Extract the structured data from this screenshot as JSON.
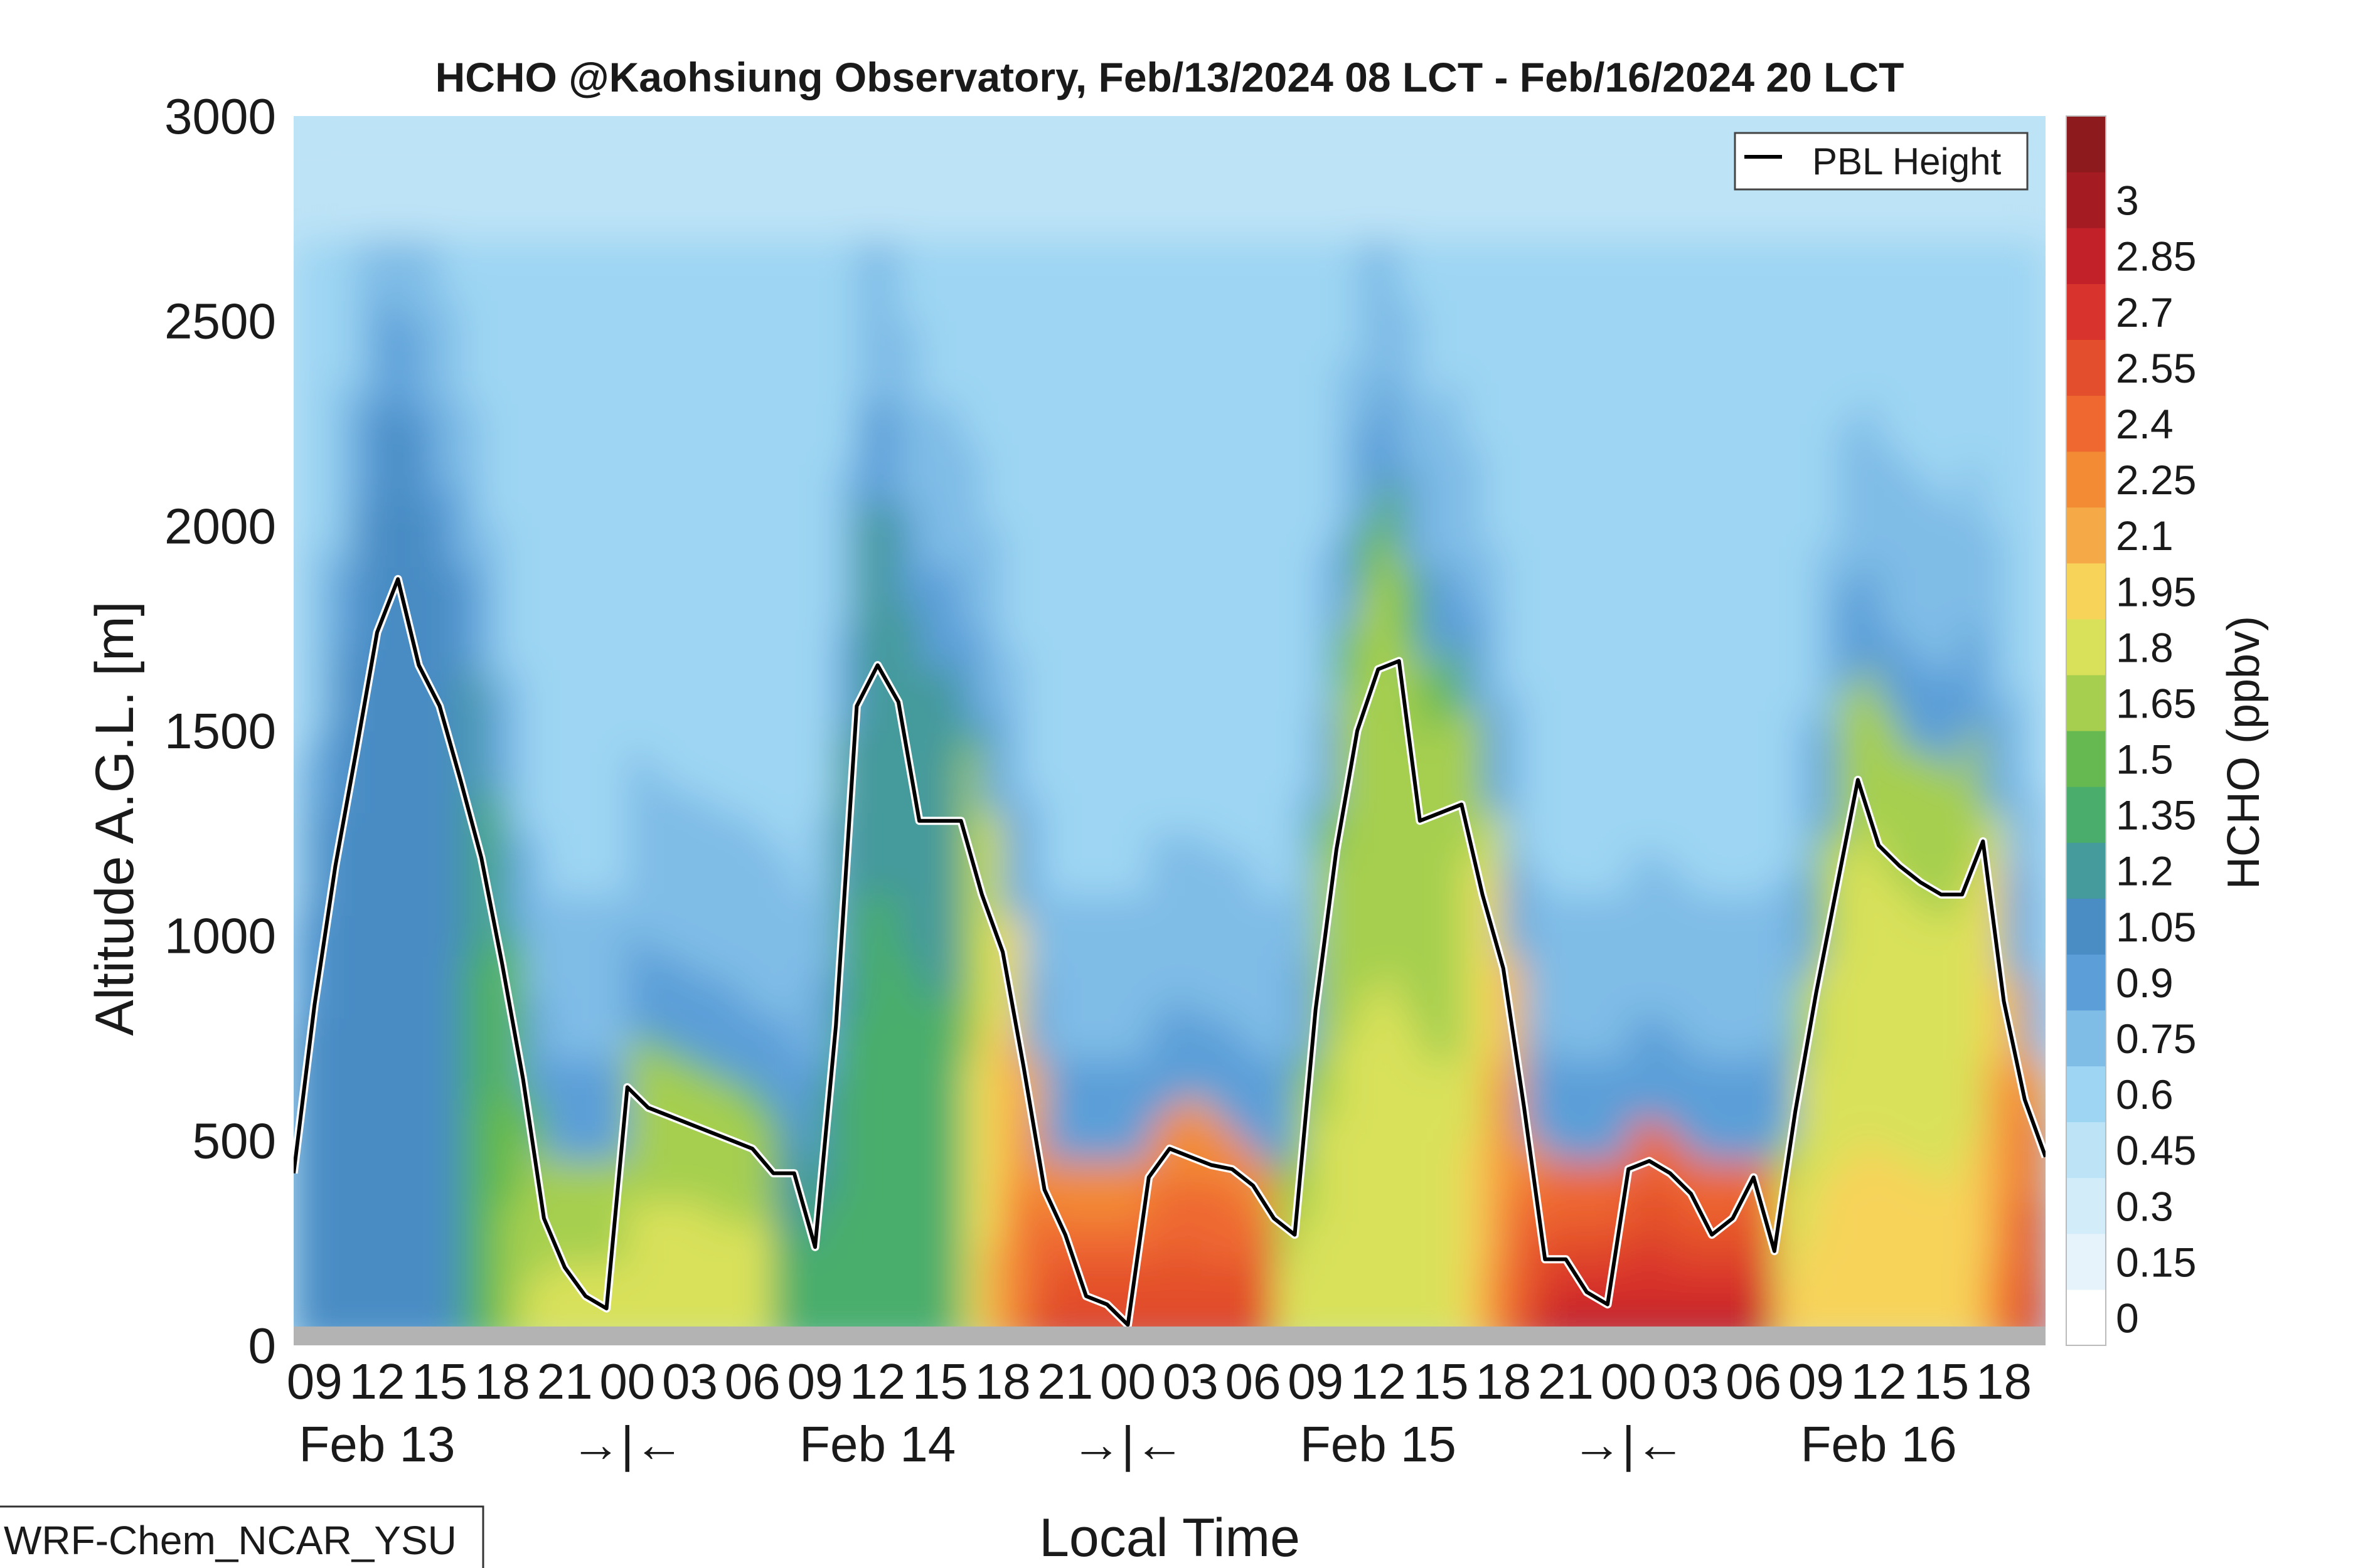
{
  "chart_data": {
    "type": "heatmap",
    "title": "HCHO @Kaohsiung Observatory, Feb/13/2024 08 LCT - Feb/16/2024 20 LCT",
    "xlabel": "Local Time",
    "ylabel": "Altitude A.G.L. [m]",
    "ylim": [
      0,
      3000
    ],
    "y_ticks": [
      "0",
      "500",
      "1000",
      "1500",
      "2000",
      "2500",
      "3000"
    ],
    "x_hour_ticks": [
      "09",
      "12",
      "15",
      "18",
      "21",
      "00",
      "03",
      "06",
      "09",
      "12",
      "15",
      "18",
      "21",
      "00",
      "03",
      "06",
      "09",
      "12",
      "15",
      "18",
      "21",
      "00",
      "03",
      "06",
      "09",
      "12",
      "15",
      "18"
    ],
    "x_day_labels": [
      "Feb 13",
      "→|←",
      "Feb 14",
      "→|←",
      "Feb 15",
      "→|←",
      "Feb 16"
    ],
    "colorbar": {
      "label": "HCHO (ppbv)",
      "ticks": [
        "0",
        "0.15",
        "0.3",
        "0.45",
        "0.6",
        "0.75",
        "0.9",
        "1.05",
        "1.2",
        "1.35",
        "1.5",
        "1.65",
        "1.8",
        "1.95",
        "2.1",
        "2.25",
        "2.4",
        "2.55",
        "2.7",
        "2.85",
        "3"
      ],
      "colors": [
        "#ffffff",
        "#e6f3fb",
        "#d2ecf9",
        "#bde3f6",
        "#9dd5f3",
        "#7fbce6",
        "#5c9fd8",
        "#4a8cc4",
        "#459a9b",
        "#4aad6c",
        "#65b950",
        "#a6cf4f",
        "#d9e15a",
        "#f7d35a",
        "#f5a947",
        "#f38a34",
        "#ee6830",
        "#e34f2c",
        "#d8332c",
        "#c2212a",
        "#a51b22",
        "#8d1a1d"
      ]
    },
    "legend": {
      "entries": [
        "PBL Height"
      ],
      "placement": "top-right"
    },
    "series": [
      {
        "name": "PBL Height",
        "x_hours_since_start": [
          0,
          1,
          2,
          3,
          4,
          5,
          6,
          7,
          8,
          9,
          10,
          11,
          12,
          13,
          14,
          15,
          16,
          17,
          18,
          19,
          20,
          21,
          22,
          23,
          24,
          25,
          26,
          27,
          28,
          29,
          30,
          31,
          32,
          33,
          34,
          35,
          36,
          37,
          38,
          39,
          40,
          41,
          42,
          43,
          44,
          45,
          46,
          47,
          48,
          49,
          50,
          51,
          52,
          53,
          54,
          55,
          56,
          57,
          58,
          59,
          60,
          61,
          62,
          63,
          64,
          65,
          66,
          67,
          68,
          69,
          70,
          71,
          72,
          73,
          74,
          75,
          76,
          77,
          78,
          79,
          80,
          81,
          82,
          83,
          84
        ],
        "values": [
          420,
          830,
          1170,
          1450,
          1740,
          1870,
          1660,
          1560,
          1380,
          1190,
          930,
          650,
          310,
          190,
          120,
          90,
          630,
          580,
          560,
          540,
          520,
          500,
          480,
          420,
          420,
          240,
          780,
          1560,
          1660,
          1570,
          1280,
          1280,
          1280,
          1100,
          960,
          680,
          380,
          270,
          120,
          100,
          50,
          410,
          480,
          460,
          440,
          430,
          390,
          310,
          270,
          820,
          1210,
          1500,
          1650,
          1670,
          1280,
          1300,
          1320,
          1100,
          920,
          580,
          210,
          210,
          130,
          100,
          430,
          450,
          420,
          370,
          270,
          310,
          410,
          230,
          570,
          860,
          1120,
          1380,
          1220,
          1170,
          1130,
          1100,
          1100,
          1230,
          840,
          600,
          460
        ]
      }
    ],
    "annotation": "WRF-Chem_NCAR_YSU"
  }
}
